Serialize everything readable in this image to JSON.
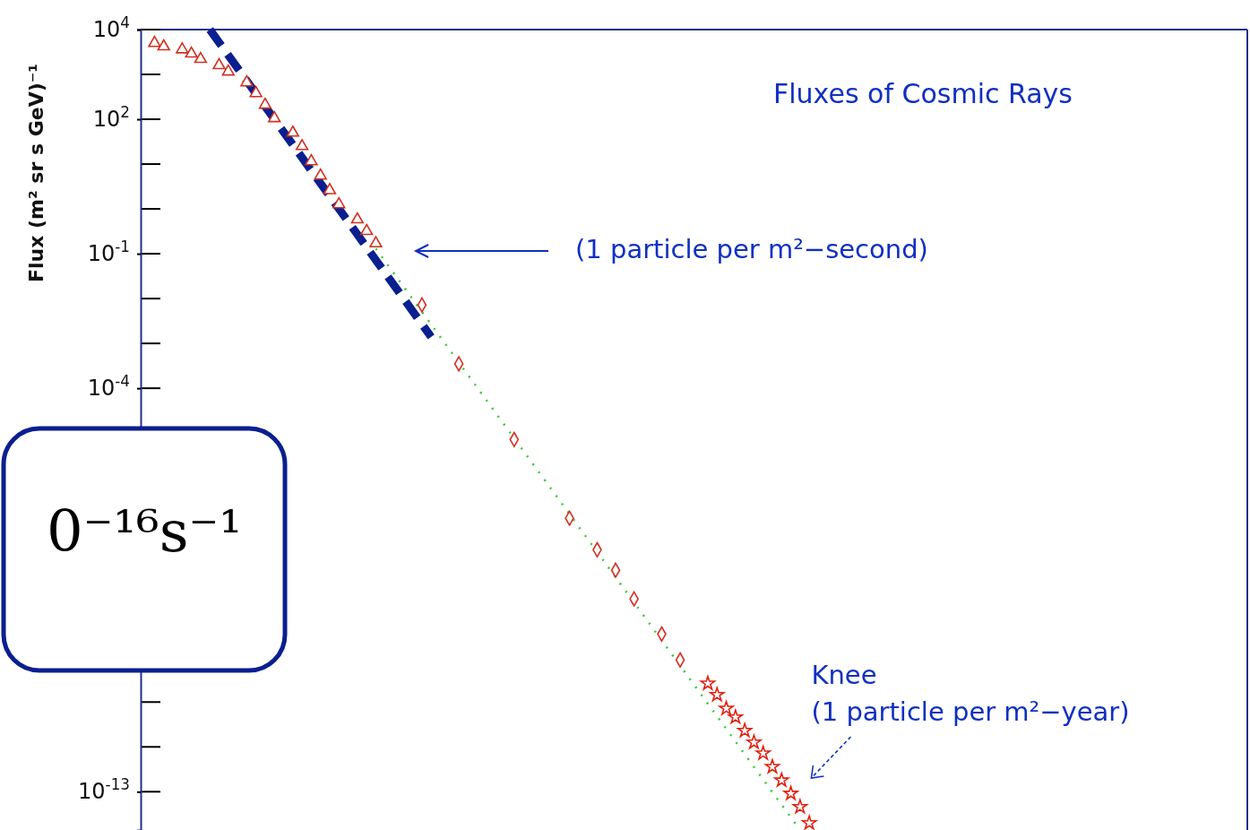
{
  "chart_data": {
    "type": "scatter",
    "title": "Fluxes of Cosmic Rays",
    "ylabel": "Flux (m² sr s GeV)⁻¹",
    "log": "y",
    "tick_labels": "y",
    "ylim": [
      1.4e-14,
      10000
    ],
    "categories": [
      null,
      null,
      null,
      null,
      null,
      null,
      null,
      null,
      null,
      null,
      null,
      null,
      null,
      null,
      null,
      null,
      null,
      null,
      null,
      null,
      null,
      null,
      null,
      null,
      null,
      null,
      null,
      null,
      null,
      null,
      null,
      null,
      null,
      null,
      null,
      null,
      null,
      null,
      null,
      null,
      null,
      null,
      null,
      null,
      null,
      null,
      null,
      null,
      null,
      null,
      null,
      null,
      null,
      null,
      null,
      null,
      null,
      null,
      null,
      null,
      null,
      null,
      null,
      null,
      null,
      null,
      null,
      null,
      null,
      null,
      null,
      null,
      null,
      null,
      null,
      null,
      null,
      null,
      null,
      null,
      null,
      null,
      null,
      null,
      null,
      null,
      null,
      null,
      null,
      null,
      null,
      null,
      null,
      null,
      null,
      null,
      null,
      null,
      null,
      null,
      null,
      null,
      null,
      null,
      null,
      null,
      null,
      null,
      null,
      null,
      null,
      null,
      null,
      null,
      null,
      null,
      null,
      null,
      null,
      null
    ],
    "yticks": [
      {
        "value": 10000,
        "label": "10$^{4}$"
      },
      {
        "value": 100,
        "label": "10$^{2}$"
      },
      {
        "value": 0.1,
        "label": "10$^{-1}$"
      },
      {
        "value": 0.0001,
        "label": "10$^{-4}$"
      },
      {
        "value": 1e-13,
        "label": "10$^{-13}$"
      }
    ],
    "series": [
      {
        "marker": "triangle",
        "color": "#d03020",
        "values": [
          null,
          5000,
          4200,
          null,
          3600,
          2900,
          2200,
          null,
          1600,
          1150,
          null,
          660,
          380,
          210,
          105,
          null,
          50,
          25,
          11.5,
          5.5,
          2.6,
          1.26,
          null,
          0.58,
          0.32,
          0.17,
          null,
          null,
          null,
          null,
          null,
          null,
          null,
          null,
          null,
          null,
          null,
          null,
          null,
          null,
          null,
          null,
          null,
          null,
          null,
          null,
          null,
          null,
          null,
          null,
          null,
          null,
          null,
          null,
          null,
          null,
          null,
          null,
          null,
          null,
          null,
          null,
          null,
          null,
          null,
          null,
          null,
          null,
          null,
          null,
          null,
          null,
          null,
          null,
          null,
          null,
          null,
          null,
          null,
          null,
          null,
          null,
          null,
          null,
          null,
          null,
          null,
          null,
          null,
          null,
          null,
          null,
          null,
          null,
          null,
          null,
          null,
          null,
          null,
          null,
          null,
          null,
          null,
          null,
          null,
          null,
          null,
          null,
          null,
          null,
          null,
          null,
          null,
          null,
          null,
          null,
          null,
          null,
          null,
          null
        ]
      },
      {
        "marker": "diamond",
        "color": "#d03020",
        "values": [
          null,
          null,
          null,
          null,
          null,
          null,
          null,
          null,
          null,
          null,
          null,
          null,
          null,
          null,
          null,
          null,
          null,
          null,
          null,
          null,
          null,
          null,
          null,
          null,
          null,
          null,
          null,
          null,
          null,
          null,
          0.0072,
          null,
          null,
          null,
          0.00035,
          null,
          null,
          null,
          null,
          null,
          7.2e-06,
          null,
          null,
          null,
          null,
          null,
          1.26e-07,
          null,
          null,
          2.5e-08,
          null,
          8.7e-09,
          null,
          2e-09,
          null,
          null,
          3.3e-10,
          null,
          8.7e-11,
          null,
          null,
          null,
          null,
          null,
          null,
          null,
          null,
          null,
          null,
          null,
          null,
          null,
          null,
          null,
          null,
          null,
          null,
          null,
          null,
          null,
          null,
          null,
          null,
          null,
          null,
          null,
          null,
          null,
          null,
          null,
          null,
          null,
          null,
          null,
          null,
          null,
          null,
          null,
          null,
          null,
          null,
          null,
          null,
          null,
          null,
          null,
          null,
          null,
          null,
          null,
          null,
          null,
          null,
          null,
          null,
          null,
          null,
          null,
          null,
          null
        ]
      },
      {
        "marker": "star",
        "color": "#e02010",
        "values": [
          null,
          null,
          null,
          null,
          null,
          null,
          null,
          null,
          null,
          null,
          null,
          null,
          null,
          null,
          null,
          null,
          null,
          null,
          null,
          null,
          null,
          null,
          null,
          null,
          null,
          null,
          null,
          null,
          null,
          null,
          null,
          null,
          null,
          null,
          null,
          null,
          null,
          null,
          null,
          null,
          null,
          null,
          null,
          null,
          null,
          null,
          null,
          null,
          null,
          null,
          null,
          null,
          null,
          null,
          null,
          null,
          null,
          null,
          null,
          null,
          null,
          2.6e-11,
          1.45e-11,
          7.2e-12,
          4.6e-12,
          2.3e-12,
          1.26e-12,
          7.2e-13,
          3.6e-13,
          1.8e-13,
          9.1e-14,
          4.6e-14,
          2e-14,
          null,
          null,
          null,
          null,
          null,
          null,
          null,
          null,
          null,
          null,
          null,
          null,
          null,
          null,
          null,
          null,
          null,
          null,
          null,
          null,
          null,
          null,
          null,
          null,
          null,
          null,
          null,
          null,
          null,
          null,
          null,
          null,
          null,
          null,
          null,
          null,
          null,
          null,
          null,
          null,
          null,
          null,
          null,
          null,
          null,
          null,
          null
        ]
      },
      {
        "type": "line",
        "marker": "none",
        "line_style": "dotted",
        "color": "#33cc33",
        "values": [
          null,
          null,
          null,
          null,
          null,
          null,
          null,
          null,
          null,
          null,
          null,
          null,
          null,
          null,
          null,
          null,
          null,
          null,
          null,
          null,
          null,
          null,
          null,
          null,
          null,
          0.13,
          null,
          null,
          null,
          null,
          null,
          null,
          null,
          null,
          null,
          null,
          null,
          null,
          null,
          null,
          null,
          null,
          null,
          null,
          null,
          null,
          null,
          null,
          null,
          null,
          null,
          null,
          null,
          null,
          null,
          null,
          null,
          null,
          null,
          null,
          null,
          null,
          null,
          null,
          null,
          null,
          null,
          null,
          null,
          null,
          null,
          1.4e-14,
          null,
          null,
          null,
          null,
          null,
          null,
          null,
          null,
          null,
          null,
          null,
          null,
          null,
          null,
          null,
          null,
          null,
          null,
          null,
          null,
          null,
          null,
          null,
          null,
          null,
          null,
          null,
          null,
          null,
          null,
          null,
          null,
          null,
          null,
          null,
          null,
          null,
          null,
          null,
          null,
          null,
          null,
          null,
          null,
          null,
          null,
          null,
          null
        ]
      },
      {
        "type": "line",
        "marker": "none",
        "line_style": "dashed",
        "color": "#0a1f8f",
        "values": [
          null,
          null,
          null,
          null,
          null,
          null,
          null,
          10000,
          null,
          null,
          null,
          null,
          null,
          null,
          null,
          null,
          null,
          null,
          null,
          null,
          null,
          null,
          null,
          null,
          null,
          null,
          null,
          null,
          null,
          null,
          null,
          0.0014,
          null,
          null,
          null,
          null,
          null,
          null,
          null,
          null,
          null,
          null,
          null,
          null,
          null,
          null,
          null,
          null,
          null,
          null,
          null,
          null,
          null,
          null,
          null,
          null,
          null,
          null,
          null,
          null,
          null,
          null,
          null,
          null,
          null,
          null,
          null,
          null,
          null,
          null,
          null,
          null,
          null,
          null,
          null,
          null,
          null,
          null,
          null,
          null,
          null,
          null,
          null,
          null,
          null,
          null,
          null,
          null,
          null,
          null,
          null,
          null,
          null,
          null,
          null,
          null,
          null,
          null,
          null,
          null,
          null,
          null,
          null,
          null,
          null,
          null,
          null,
          null,
          null,
          null,
          null,
          null,
          null,
          null,
          null,
          null,
          null,
          null,
          null,
          null
        ]
      }
    ],
    "annotations": [
      "(1 particle per m²−second)",
      "Knee\n(1 particle per m²−year)",
      "0⁻¹⁶s⁻¹"
    ]
  }
}
